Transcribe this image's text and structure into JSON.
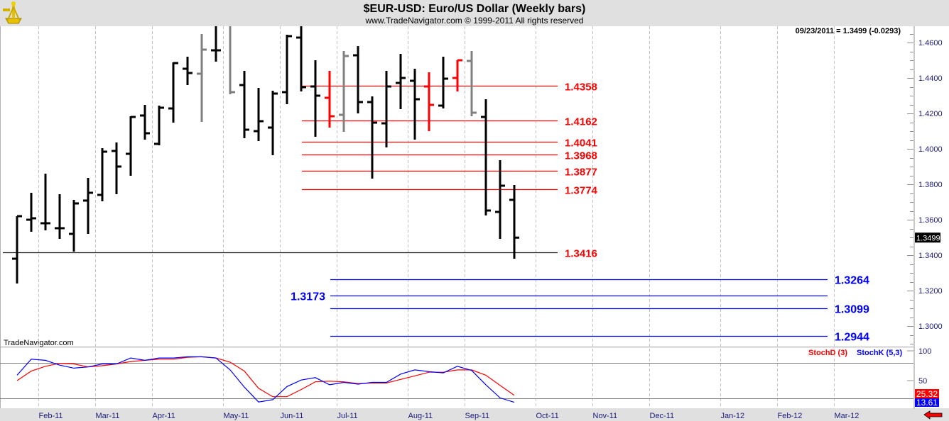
{
  "header": {
    "title": "$EUR-USD:  Euro/US Dollar  (Weekly bars)",
    "subtitle": "www.TradeNavigator.com © 1999-2011 All rights reserved",
    "readout": "09/23/2011 = 1.3499 (-0.0293)",
    "watermark": "TradeNavigator.com",
    "logo_icon": "sextant-icon"
  },
  "colors": {
    "black": "#000000",
    "gray": "#808080",
    "red": "#ff0000",
    "blue": "#0000ff",
    "axis_text": "#1a1a7a",
    "panel": "#e0e0e0"
  },
  "chart_data": [
    {
      "type": "ohlc",
      "title": "$EUR-USD:  Euro/US Dollar  (Weekly bars)",
      "ylim": [
        1.2888,
        1.4692
      ],
      "y_ticks": [
        "1.4600",
        "1.4400",
        "1.4200",
        "1.4000",
        "1.3800",
        "1.3600",
        "1.3400",
        "1.3200",
        "1.3000"
      ],
      "current_price_label": "1.3499",
      "bars": [
        {
          "o": 1.338,
          "h": 1.362,
          "l": 1.324,
          "c": 1.362,
          "color": "black"
        },
        {
          "o": 1.36,
          "h": 1.3752,
          "l": 1.3532,
          "c": 1.3608,
          "color": "black"
        },
        {
          "o": 1.358,
          "h": 1.386,
          "l": 1.354,
          "c": 1.358,
          "color": "black"
        },
        {
          "o": 1.3552,
          "h": 1.3744,
          "l": 1.3492,
          "c": 1.3552,
          "color": "black"
        },
        {
          "o": 1.352,
          "h": 1.3712,
          "l": 1.342,
          "c": 1.3692,
          "color": "black"
        },
        {
          "o": 1.3708,
          "h": 1.3836,
          "l": 1.352,
          "c": 1.3752,
          "color": "black"
        },
        {
          "o": 1.374,
          "h": 1.4004,
          "l": 1.3704,
          "c": 1.3984,
          "color": "black"
        },
        {
          "o": 1.3988,
          "h": 1.4036,
          "l": 1.3744,
          "c": 1.39,
          "color": "black"
        },
        {
          "o": 1.3972,
          "h": 1.4184,
          "l": 1.3848,
          "c": 1.418,
          "color": "black"
        },
        {
          "o": 1.4188,
          "h": 1.4248,
          "l": 1.4052,
          "c": 1.4088,
          "color": "black"
        },
        {
          "o": 1.4028,
          "h": 1.4244,
          "l": 1.402,
          "c": 1.4232,
          "color": "black"
        },
        {
          "o": 1.4228,
          "h": 1.4488,
          "l": 1.4148,
          "c": 1.4484,
          "color": "black"
        },
        {
          "o": 1.4452,
          "h": 1.452,
          "l": 1.436,
          "c": 1.4428,
          "color": "black"
        },
        {
          "o": 1.4424,
          "h": 1.4648,
          "l": 1.4152,
          "c": 1.456,
          "color": "gray"
        },
        {
          "o": 1.4556,
          "h": 1.472,
          "l": 1.4492,
          "c": 1.4556,
          "color": "black"
        },
        {
          "o": 1.4708,
          "h": 1.48,
          "l": 1.4308,
          "c": 1.432,
          "color": "gray"
        },
        {
          "o": 1.436,
          "h": 1.444,
          "l": 1.406,
          "c": 1.4108,
          "color": "black"
        },
        {
          "o": 1.41,
          "h": 1.4344,
          "l": 1.4044,
          "c": 1.4156,
          "color": "black"
        },
        {
          "o": 1.412,
          "h": 1.4328,
          "l": 1.3964,
          "c": 1.4312,
          "color": "black"
        },
        {
          "o": 1.432,
          "h": 1.4644,
          "l": 1.4252,
          "c": 1.4636,
          "color": "black"
        },
        {
          "o": 1.4628,
          "h": 1.474,
          "l": 1.4324,
          "c": 1.4348,
          "color": "black"
        },
        {
          "o": 1.4352,
          "h": 1.45,
          "l": 1.4068,
          "c": 1.43,
          "color": "black"
        },
        {
          "o": 1.4288,
          "h": 1.444,
          "l": 1.412,
          "c": 1.4184,
          "color": "red"
        },
        {
          "o": 1.4192,
          "h": 1.4552,
          "l": 1.4096,
          "c": 1.4524,
          "color": "gray"
        },
        {
          "o": 1.4528,
          "h": 1.458,
          "l": 1.42,
          "c": 1.4264,
          "color": "black"
        },
        {
          "o": 1.4264,
          "h": 1.4296,
          "l": 1.3832,
          "c": 1.4148,
          "color": "black"
        },
        {
          "o": 1.4144,
          "h": 1.444,
          "l": 1.4008,
          "c": 1.4352,
          "color": "black"
        },
        {
          "o": 1.4372,
          "h": 1.4536,
          "l": 1.4224,
          "c": 1.44,
          "color": "black"
        },
        {
          "o": 1.4384,
          "h": 1.4452,
          "l": 1.4052,
          "c": 1.428,
          "color": "black"
        },
        {
          "o": 1.4352,
          "h": 1.4432,
          "l": 1.41,
          "c": 1.4248,
          "color": "red"
        },
        {
          "o": 1.4244,
          "h": 1.452,
          "l": 1.4228,
          "c": 1.4396,
          "color": "black"
        },
        {
          "o": 1.44,
          "h": 1.45,
          "l": 1.4324,
          "c": 1.45,
          "color": "red"
        },
        {
          "o": 1.4496,
          "h": 1.4552,
          "l": 1.4184,
          "c": 1.4204,
          "color": "gray"
        },
        {
          "o": 1.418,
          "h": 1.428,
          "l": 1.3624,
          "c": 1.3652,
          "color": "black"
        },
        {
          "o": 1.3644,
          "h": 1.3936,
          "l": 1.3492,
          "c": 1.3792,
          "color": "black"
        },
        {
          "o": 1.3712,
          "h": 1.3796,
          "l": 1.338,
          "c": 1.3499,
          "color": "black"
        }
      ],
      "levels": [
        {
          "label": "1.4358",
          "value": 1.4358,
          "color": "red",
          "line": "red",
          "from_week": 20,
          "to_week": 38,
          "label_side": "right-mid"
        },
        {
          "label": "1.4162",
          "value": 1.4162,
          "color": "red",
          "line": "red",
          "from_week": 20,
          "to_week": 38,
          "label_side": "right-mid"
        },
        {
          "label": "1.4041",
          "value": 1.4041,
          "color": "red",
          "line": "red",
          "from_week": 20,
          "to_week": 38,
          "label_side": "right-mid"
        },
        {
          "label": "1.3968",
          "value": 1.3968,
          "color": "red",
          "line": "red",
          "from_week": 20,
          "to_week": 38,
          "label_side": "right-mid"
        },
        {
          "label": "1.3877",
          "value": 1.3877,
          "color": "red",
          "line": "red",
          "from_week": 20,
          "to_week": 38,
          "label_side": "right-mid"
        },
        {
          "label": "1.3774",
          "value": 1.3774,
          "color": "red",
          "line": "red",
          "from_week": 20,
          "to_week": 38,
          "label_side": "right-mid"
        },
        {
          "label": "1.3416",
          "value": 1.3416,
          "color": "red",
          "line": "black",
          "from_week": -1,
          "to_week": 38,
          "label_side": "right-mid"
        },
        {
          "label": "1.3264",
          "value": 1.3264,
          "color": "blue",
          "line": "blue",
          "from_week": 22,
          "to_week": 57,
          "label_side": "right"
        },
        {
          "label": "1.3173",
          "value": 1.3173,
          "color": "blue",
          "line": "blue",
          "from_week": 22,
          "to_week": 57,
          "label_side": "left"
        },
        {
          "label": "1.3099",
          "value": 1.3099,
          "color": "blue",
          "line": "blue",
          "from_week": 22,
          "to_week": 57,
          "label_side": "right"
        },
        {
          "label": "1.2944",
          "value": 1.2944,
          "color": "blue",
          "line": "blue",
          "from_week": 22,
          "to_week": 57,
          "label_side": "right"
        }
      ]
    },
    {
      "type": "line",
      "title": "Stochastic",
      "ylim": [
        3.6,
        105.9
      ],
      "y_ticks": [
        "100",
        "50"
      ],
      "reference_lines": [
        80,
        20
      ],
      "series": [
        {
          "name": "StochD (3)",
          "color": "red",
          "last_label": "25.32",
          "values": [
            50,
            66,
            74,
            79,
            78,
            73,
            75,
            78,
            82,
            84,
            86,
            86,
            89,
            90,
            88,
            81,
            66,
            37,
            23,
            23,
            35,
            48,
            49,
            48,
            45,
            46,
            46,
            52,
            58,
            64,
            64,
            68,
            68,
            59,
            42,
            25.32
          ]
        },
        {
          "name": "StochK (5,3)",
          "color": "blue",
          "last_label": "13.61",
          "values": [
            59,
            86,
            84,
            76,
            71,
            73,
            78,
            78,
            88,
            84,
            88,
            88,
            90,
            90,
            88,
            68,
            39,
            14,
            18,
            40,
            51,
            55,
            43,
            47,
            44,
            47,
            47,
            61,
            68,
            65,
            63,
            74,
            67,
            43,
            21,
            13.61
          ]
        }
      ]
    }
  ],
  "x_axis": {
    "labels": [
      {
        "label": "Feb-11",
        "week": 1.5
      },
      {
        "label": "Mar-11",
        "week": 5.5
      },
      {
        "label": "Apr-11",
        "week": 9.5
      },
      {
        "label": "May-11",
        "week": 14.5
      },
      {
        "label": "Jun-11",
        "week": 18.5
      },
      {
        "label": "Jul-11",
        "week": 22.5
      },
      {
        "label": "Aug-11",
        "week": 27.5
      },
      {
        "label": "Sep-11",
        "week": 31.5
      },
      {
        "label": "Oct-11",
        "week": 36.5
      },
      {
        "label": "Nov-11",
        "week": 40.5
      },
      {
        "label": "Dec-11",
        "week": 44.5
      },
      {
        "label": "Jan-12",
        "week": 49.5
      },
      {
        "label": "Feb-12",
        "week": 53.5
      },
      {
        "label": "Mar-12",
        "week": 57.5
      }
    ]
  },
  "controls": {
    "scroll_icon": "red-left-arrow-icon"
  }
}
